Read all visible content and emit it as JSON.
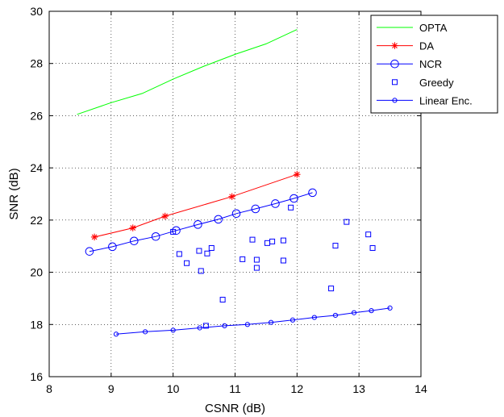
{
  "chart_data": {
    "type": "line",
    "title": "",
    "xlabel": "CSNR (dB)",
    "ylabel": "SNR (dB)",
    "xlim": [
      8,
      14
    ],
    "ylim": [
      16,
      30
    ],
    "xticks": [
      8,
      9,
      10,
      11,
      12,
      13,
      14
    ],
    "yticks": [
      16,
      18,
      20,
      22,
      24,
      26,
      28,
      30
    ],
    "grid": true,
    "legend_position": "top-right",
    "series": [
      {
        "name": "OPTA",
        "color": "#00ff00",
        "style": "line",
        "marker": "none",
        "points": [
          [
            8.45,
            26.05
          ],
          [
            9.0,
            26.5
          ],
          [
            9.5,
            26.85
          ],
          [
            10.0,
            27.4
          ],
          [
            10.5,
            27.9
          ],
          [
            11.0,
            28.35
          ],
          [
            11.5,
            28.75
          ],
          [
            12.0,
            29.3
          ]
        ]
      },
      {
        "name": "DA",
        "color": "#ff0000",
        "style": "line",
        "marker": "star",
        "points": [
          [
            8.73,
            21.35
          ],
          [
            9.35,
            21.7
          ],
          [
            9.87,
            22.15
          ],
          [
            10.95,
            22.9
          ],
          [
            12.0,
            23.75
          ]
        ]
      },
      {
        "name": "NCR",
        "color": "#0000ff",
        "style": "line",
        "marker": "circle",
        "points": [
          [
            8.65,
            20.8
          ],
          [
            9.02,
            20.98
          ],
          [
            9.37,
            21.2
          ],
          [
            9.72,
            21.37
          ],
          [
            10.05,
            21.6
          ],
          [
            10.4,
            21.83
          ],
          [
            10.73,
            22.03
          ],
          [
            11.02,
            22.25
          ],
          [
            11.33,
            22.43
          ],
          [
            11.65,
            22.63
          ],
          [
            11.95,
            22.83
          ],
          [
            12.25,
            23.05
          ]
        ]
      },
      {
        "name": "Greedy",
        "color": "#0000ff",
        "style": "marker-only",
        "marker": "square",
        "points": [
          [
            10.0,
            21.55
          ],
          [
            10.1,
            20.7
          ],
          [
            10.22,
            20.35
          ],
          [
            10.42,
            20.82
          ],
          [
            10.45,
            20.05
          ],
          [
            10.55,
            20.72
          ],
          [
            10.62,
            20.93
          ],
          [
            10.8,
            18.95
          ],
          [
            10.53,
            17.95
          ],
          [
            11.12,
            20.5
          ],
          [
            11.28,
            21.25
          ],
          [
            11.35,
            20.48
          ],
          [
            11.35,
            20.17
          ],
          [
            11.52,
            21.12
          ],
          [
            11.6,
            21.18
          ],
          [
            11.78,
            21.22
          ],
          [
            11.78,
            20.45
          ],
          [
            11.9,
            22.48
          ],
          [
            12.55,
            19.38
          ],
          [
            12.62,
            21.02
          ],
          [
            12.8,
            21.93
          ],
          [
            13.15,
            21.45
          ],
          [
            13.22,
            20.93
          ]
        ]
      },
      {
        "name": "Linear Enc.",
        "color": "#0000ff",
        "style": "line",
        "marker": "small-circle",
        "points": [
          [
            9.08,
            17.63
          ],
          [
            9.55,
            17.72
          ],
          [
            10.0,
            17.78
          ],
          [
            10.43,
            17.87
          ],
          [
            10.83,
            17.95
          ],
          [
            11.2,
            18.0
          ],
          [
            11.58,
            18.08
          ],
          [
            11.93,
            18.17
          ],
          [
            12.28,
            18.27
          ],
          [
            12.62,
            18.35
          ],
          [
            12.92,
            18.45
          ],
          [
            13.2,
            18.53
          ],
          [
            13.5,
            18.63
          ]
        ]
      }
    ]
  }
}
